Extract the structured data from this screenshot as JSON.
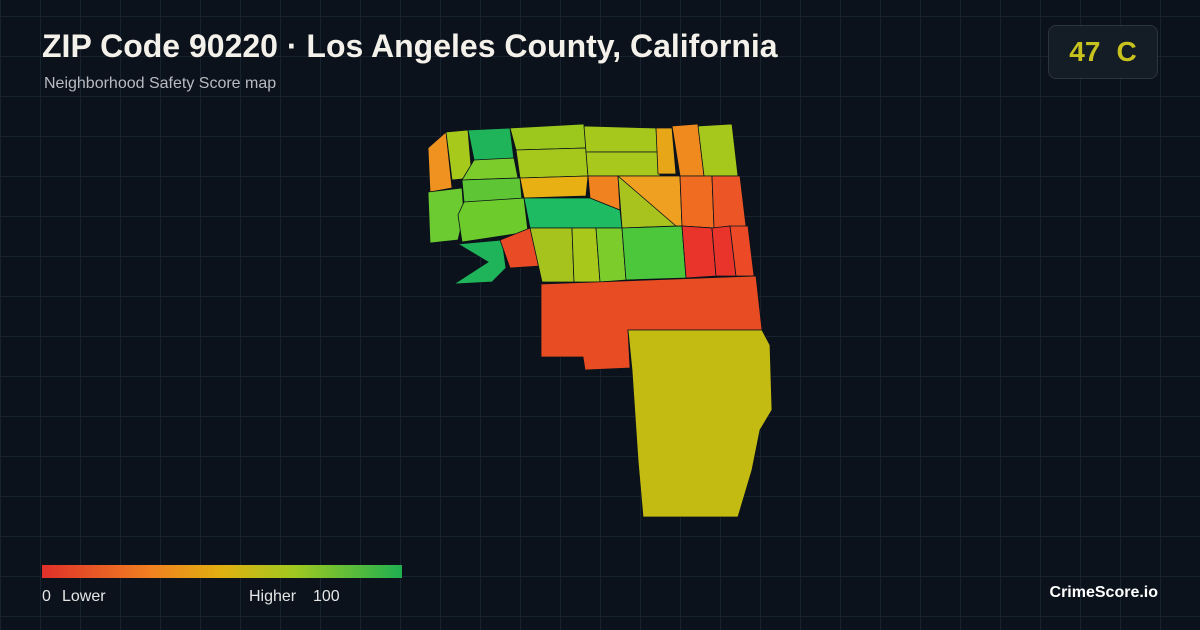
{
  "header": {
    "title": "ZIP Code 90220 · Los Angeles County, California",
    "subtitle": "Neighborhood Safety Score map"
  },
  "score": {
    "value": 47,
    "grade": "C"
  },
  "legend": {
    "min": 0,
    "min_label": "Lower",
    "max_label": "Higher",
    "max": 100
  },
  "brand": "CrimeScore.io"
}
